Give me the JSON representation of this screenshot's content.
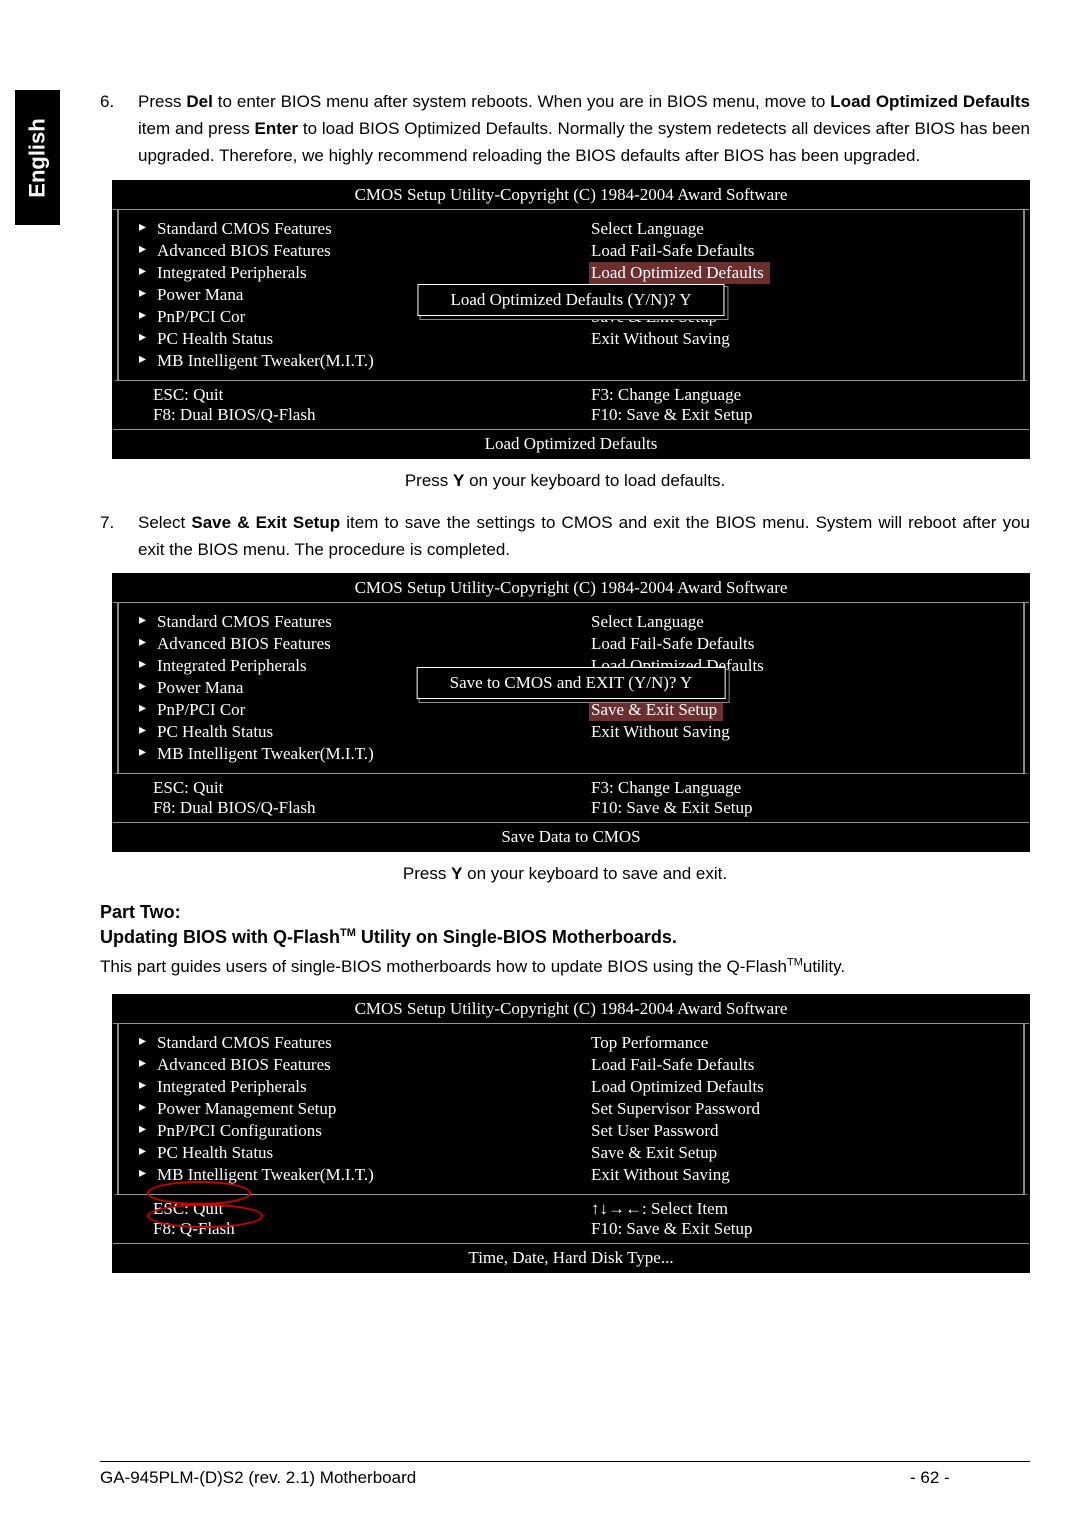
{
  "language_tab": "English",
  "instruction6": {
    "num": "6.",
    "pre": "Press ",
    "del": "Del",
    "mid1": " to enter BIOS menu after system reboots. When you are in BIOS menu, move to ",
    "lod": "Load Optimized Defaults",
    "mid2": " item and press ",
    "enter": "Enter",
    "post": " to load BIOS Optimized Defaults. Normally the system redetects all devices after BIOS has been upgraded. Therefore, we highly recommend reloading the BIOS defaults after BIOS has been upgraded."
  },
  "bios_common": {
    "header": "CMOS Setup Utility-Copyright (C) 1984-2004 Award Software",
    "left_items": [
      "Standard CMOS Features",
      "Advanced BIOS Features",
      "Integrated Peripherals",
      "Power Mana",
      "PnP/PCI Cor",
      "PC Health Status",
      "MB Intelligent Tweaker(M.I.T.)"
    ],
    "left_items_full": [
      "Standard CMOS Features",
      "Advanced BIOS Features",
      "Integrated Peripherals",
      "Power Management Setup",
      "PnP/PCI Configurations",
      "PC Health Status",
      "MB Intelligent Tweaker(M.I.T.)"
    ],
    "left_trunc_peripherals": "Integrated Peripherals",
    "footer_esc": "ESC: Quit",
    "footer_f8_dual": "F8: Dual BIOS/Q-Flash",
    "footer_f8_q": "F8: Q-Flash",
    "footer_f3": "F3: Change Language",
    "footer_arrows": "↑↓→←: Select Item",
    "footer_f10": "F10: Save & Exit Setup"
  },
  "bios_box1": {
    "right_items": [
      "Select Language",
      "Load Fail-Safe Defaults",
      "Load Optimized Defaults",
      "",
      "Save & Exit Setup",
      "Exit Without Saving"
    ],
    "highlight_idx": 2,
    "dialog": "Load Optimized Defaults (Y/N)? Y",
    "status": "Load Optimized Defaults"
  },
  "caption1_pre": "Press ",
  "caption1_y": "Y",
  "caption1_post": " on your keyboard to load defaults.",
  "instruction7": {
    "num": "7.",
    "pre": "Select ",
    "saveexit": "Save & Exit Setup",
    "post1": " item to save the settings to CMOS and exit the BIOS menu. System will reboot after you exit the BIOS menu. The procedure is completed."
  },
  "bios_box2": {
    "right_items": [
      "Select Language",
      "Load Fail-Safe Defaults",
      "Load Optimized Defaults",
      "",
      "Save & Exit Setup",
      "Exit Without Saving"
    ],
    "highlight_idx": 4,
    "dialog": "Save to CMOS and EXIT (Y/N)? Y",
    "status": "Save Data to CMOS"
  },
  "caption2_pre": "Press ",
  "caption2_y": "Y",
  "caption2_post": " on your keyboard to save and exit.",
  "part_two_heading": "Part Two:",
  "part_two_sub_pre": "Updating BIOS with Q-Flash",
  "part_two_sub_tm": "TM",
  "part_two_sub_post": " Utility on Single-BIOS Motherboards.",
  "part_two_text_pre": "This part guides users of single-BIOS motherboards how to update BIOS using the Q-Flash",
  "part_two_text_tm": "TM",
  "part_two_text_post": "utility.",
  "bios_box3": {
    "right_items": [
      "Top Performance",
      "Load Fail-Safe Defaults",
      "Load Optimized Defaults",
      "Set Supervisor Password",
      "Set User Password",
      "Save & Exit Setup",
      "Exit Without Saving"
    ],
    "status": "Time, Date, Hard Disk Type..."
  },
  "footer_left": "GA-945PLM-(D)S2 (rev. 2.1) Motherboard",
  "footer_page": "- 62 -",
  "colors": {
    "bg": "#ffffff",
    "panel": "#000000",
    "text_light": "#ffffff",
    "highlight_bg": "#6b2f2f",
    "annot": "#cc0000",
    "rule": "#949494"
  }
}
